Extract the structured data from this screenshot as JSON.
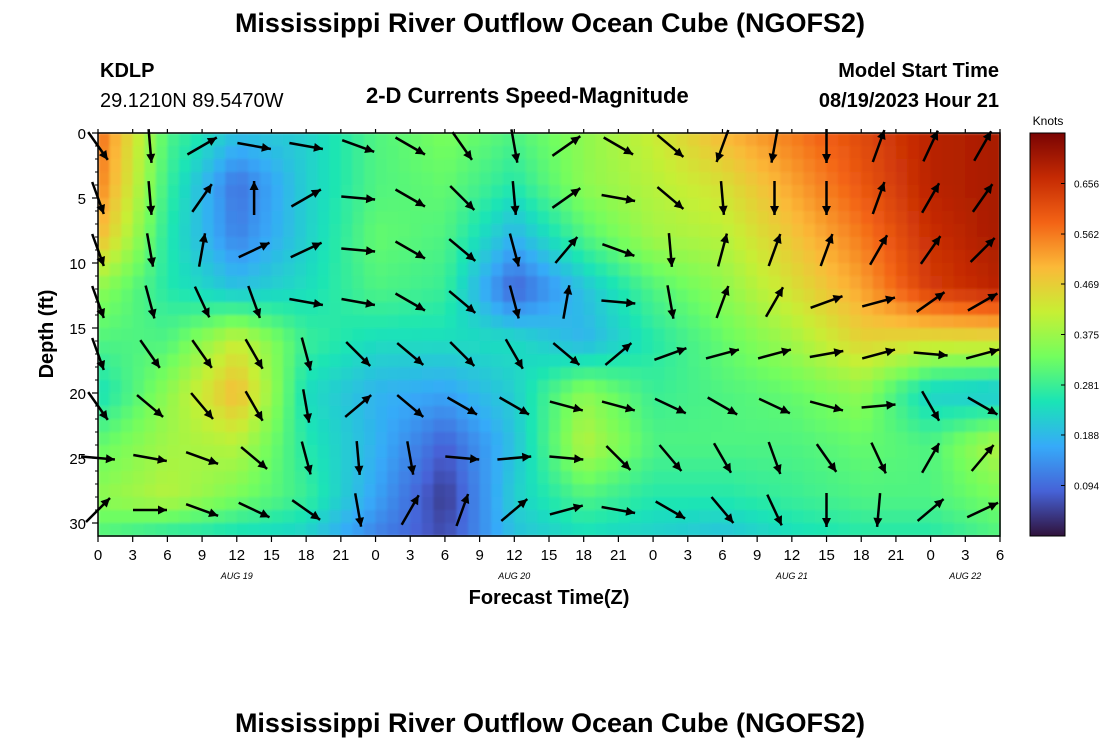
{
  "header": {
    "title": "Mississippi River Outflow Ocean Cube (NGOFS2)",
    "station_code": "KDLP",
    "station_coords": "29.1210N  89.5470W",
    "plot_title": "2-D Currents Speed-Magnitude",
    "model_label": "Model Start Time",
    "model_time": "08/19/2023 Hour 21"
  },
  "footer": {
    "title": "Mississippi River Outflow Ocean Cube (NGOFS2)"
  },
  "chart_data": {
    "type": "heatmap",
    "title": "2-D Currents Speed-Magnitude",
    "xlabel": "Forecast Time(Z)",
    "ylabel": "Depth (ft)",
    "x_tick_labels": [
      "0",
      "3",
      "6",
      "9",
      "12",
      "15",
      "18",
      "21",
      "0",
      "3",
      "6",
      "9",
      "12",
      "15",
      "18",
      "21",
      "0",
      "3",
      "6",
      "9",
      "12",
      "15",
      "18",
      "21",
      "0",
      "3",
      "6"
    ],
    "date_labels": [
      {
        "label": "AUG 19",
        "hour": 12
      },
      {
        "label": "AUG 20",
        "hour": 36
      },
      {
        "label": "AUG 21",
        "hour": 60
      },
      {
        "label": "AUG 22",
        "hour": 75
      }
    ],
    "xlim": [
      0,
      78
    ],
    "ylim": [
      0,
      31
    ],
    "y_ticks": [
      0,
      5,
      10,
      15,
      20,
      25,
      30
    ],
    "colorbar": {
      "label": "Knots",
      "ticks": [
        "0.094",
        "0.188",
        "0.281",
        "0.375",
        "0.469",
        "0.562",
        "0.656"
      ],
      "tick_values": [
        0.094,
        0.188,
        0.281,
        0.375,
        0.469,
        0.562,
        0.656
      ],
      "range": [
        0.0,
        0.75
      ],
      "colormap": [
        "#30123b",
        "#4662d7",
        "#36aaf9",
        "#1ae4b6",
        "#72fe5e",
        "#c7ef34",
        "#fbb938",
        "#f36315",
        "#c52a03",
        "#7a0403"
      ]
    },
    "depths": [
      0,
      4,
      8,
      12,
      16,
      20,
      24,
      28,
      31
    ],
    "hours": [
      0,
      6,
      12,
      18,
      24,
      30,
      36,
      42,
      48,
      54,
      60,
      66,
      72,
      78
    ],
    "speed": [
      [
        0.58,
        0.3,
        0.2,
        0.22,
        0.3,
        0.34,
        0.3,
        0.36,
        0.42,
        0.5,
        0.56,
        0.62,
        0.68,
        0.7
      ],
      [
        0.56,
        0.28,
        0.1,
        0.22,
        0.3,
        0.32,
        0.26,
        0.36,
        0.4,
        0.44,
        0.52,
        0.6,
        0.68,
        0.7
      ],
      [
        0.5,
        0.26,
        0.12,
        0.22,
        0.32,
        0.3,
        0.18,
        0.3,
        0.38,
        0.4,
        0.48,
        0.56,
        0.66,
        0.7
      ],
      [
        0.36,
        0.26,
        0.2,
        0.24,
        0.3,
        0.28,
        0.08,
        0.2,
        0.3,
        0.36,
        0.44,
        0.52,
        0.64,
        0.68
      ],
      [
        0.3,
        0.3,
        0.42,
        0.28,
        0.24,
        0.24,
        0.24,
        0.18,
        0.26,
        0.32,
        0.38,
        0.46,
        0.44,
        0.44
      ],
      [
        0.24,
        0.36,
        0.5,
        0.24,
        0.18,
        0.16,
        0.22,
        0.36,
        0.28,
        0.3,
        0.32,
        0.36,
        0.22,
        0.2
      ],
      [
        0.32,
        0.38,
        0.4,
        0.26,
        0.18,
        0.08,
        0.2,
        0.4,
        0.3,
        0.3,
        0.3,
        0.32,
        0.3,
        0.4
      ],
      [
        0.36,
        0.4,
        0.34,
        0.28,
        0.16,
        0.04,
        0.22,
        0.3,
        0.26,
        0.26,
        0.28,
        0.3,
        0.3,
        0.34
      ],
      [
        0.3,
        0.26,
        0.24,
        0.22,
        0.12,
        0.06,
        0.2,
        0.24,
        0.22,
        0.2,
        0.24,
        0.26,
        0.26,
        0.3
      ]
    ],
    "arrow_hours": [
      0,
      4.5,
      9,
      13.5,
      18,
      22.5,
      27,
      31.5,
      36,
      40.5,
      45,
      49.5,
      54,
      58.5,
      63,
      67.5,
      72,
      76.5
    ],
    "arrow_depths": [
      1,
      5,
      9,
      13,
      17,
      21,
      25,
      29
    ],
    "arrow_angles_deg": [
      [
        -55,
        -85,
        30,
        -10,
        -10,
        -20,
        -30,
        -55,
        -80,
        35,
        -30,
        -40,
        -110,
        -100,
        -90,
        70,
        65,
        60
      ],
      [
        -70,
        -85,
        55,
        90,
        30,
        -5,
        -30,
        -45,
        -85,
        35,
        -10,
        -40,
        -85,
        -90,
        -90,
        70,
        60,
        55
      ],
      [
        -70,
        -80,
        80,
        25,
        25,
        -5,
        -30,
        -40,
        -75,
        50,
        -20,
        -85,
        75,
        70,
        70,
        60,
        55,
        45
      ],
      [
        -70,
        -75,
        -65,
        -70,
        -10,
        -10,
        -30,
        -40,
        -75,
        80,
        -5,
        -80,
        70,
        60,
        20,
        15,
        35,
        30
      ],
      [
        -70,
        -55,
        -55,
        -60,
        -75,
        -45,
        -40,
        -45,
        -60,
        -40,
        40,
        20,
        15,
        15,
        10,
        15,
        -5,
        15
      ],
      [
        -55,
        -40,
        -50,
        -60,
        -80,
        40,
        -40,
        -30,
        -30,
        -15,
        -15,
        -25,
        -30,
        -25,
        -15,
        5,
        -60,
        -30
      ],
      [
        -5,
        -10,
        -20,
        -40,
        -75,
        -85,
        -80,
        -5,
        5,
        -5,
        -45,
        -50,
        -60,
        -70,
        -55,
        -65,
        60,
        50
      ],
      [
        45,
        0,
        -20,
        -25,
        -35,
        -80,
        60,
        70,
        40,
        15,
        -10,
        -30,
        -50,
        -65,
        -90,
        -95,
        40,
        25
      ]
    ]
  }
}
